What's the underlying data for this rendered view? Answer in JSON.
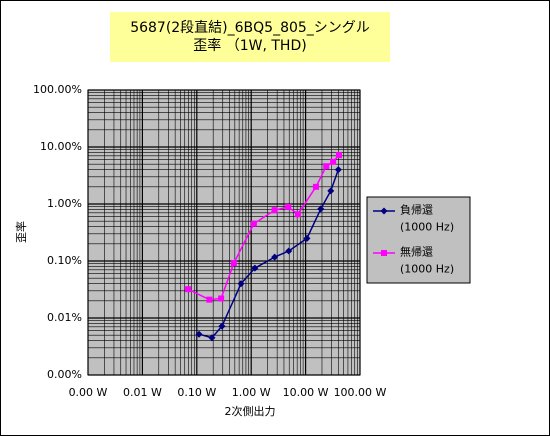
{
  "chart_data": {
    "type": "line",
    "title": "5687(2段直結)_6BQ5_805_シングル\n歪率 （1W, THD)",
    "x_label": "2次側出力",
    "y_label": "歪率",
    "log_x": true,
    "log_y": true,
    "grid": true,
    "minor_grid": true,
    "legend": "right",
    "xlim": [
      0.001,
      100
    ],
    "ylim": [
      0.001,
      100
    ],
    "xticks": [
      {
        "value": 0.001,
        "label": "0.00 W"
      },
      {
        "value": 0.01,
        "label": "0.01 W"
      },
      {
        "value": 0.1,
        "label": "0.10 W"
      },
      {
        "value": 1,
        "label": "1.00 W"
      },
      {
        "value": 10,
        "label": "10.00 W"
      },
      {
        "value": 100,
        "label": "100.00 W"
      }
    ],
    "yticks": [
      {
        "value": 0.001,
        "label": "0.00%"
      },
      {
        "value": 0.01,
        "label": "0.01%"
      },
      {
        "value": 0.1,
        "label": "0.10%"
      },
      {
        "value": 1,
        "label": "1.00%"
      },
      {
        "value": 10,
        "label": "10.00%"
      },
      {
        "value": 100,
        "label": "100.00%"
      }
    ],
    "series": [
      {
        "name": "負帰還\n(1000 Hz)",
        "color": "#000080",
        "marker": "diamond",
        "x": [
          0.11,
          0.19,
          0.29,
          0.65,
          1.17,
          2.7,
          4.9,
          10.6,
          19,
          29,
          40
        ],
        "values": [
          0.0052,
          0.0045,
          0.0072,
          0.04,
          0.075,
          0.117,
          0.15,
          0.25,
          0.82,
          1.7,
          4.0
        ]
      },
      {
        "name": "無帰還\n(1000 Hz)",
        "color": "#ff00ff",
        "marker": "square",
        "x": [
          0.069,
          0.17,
          0.28,
          0.48,
          1.12,
          2.7,
          4.8,
          7.2,
          15.5,
          24,
          32,
          41
        ],
        "values": [
          0.032,
          0.021,
          0.022,
          0.092,
          0.45,
          0.78,
          0.89,
          0.66,
          2.0,
          4.6,
          5.5,
          7.2
        ]
      }
    ]
  }
}
